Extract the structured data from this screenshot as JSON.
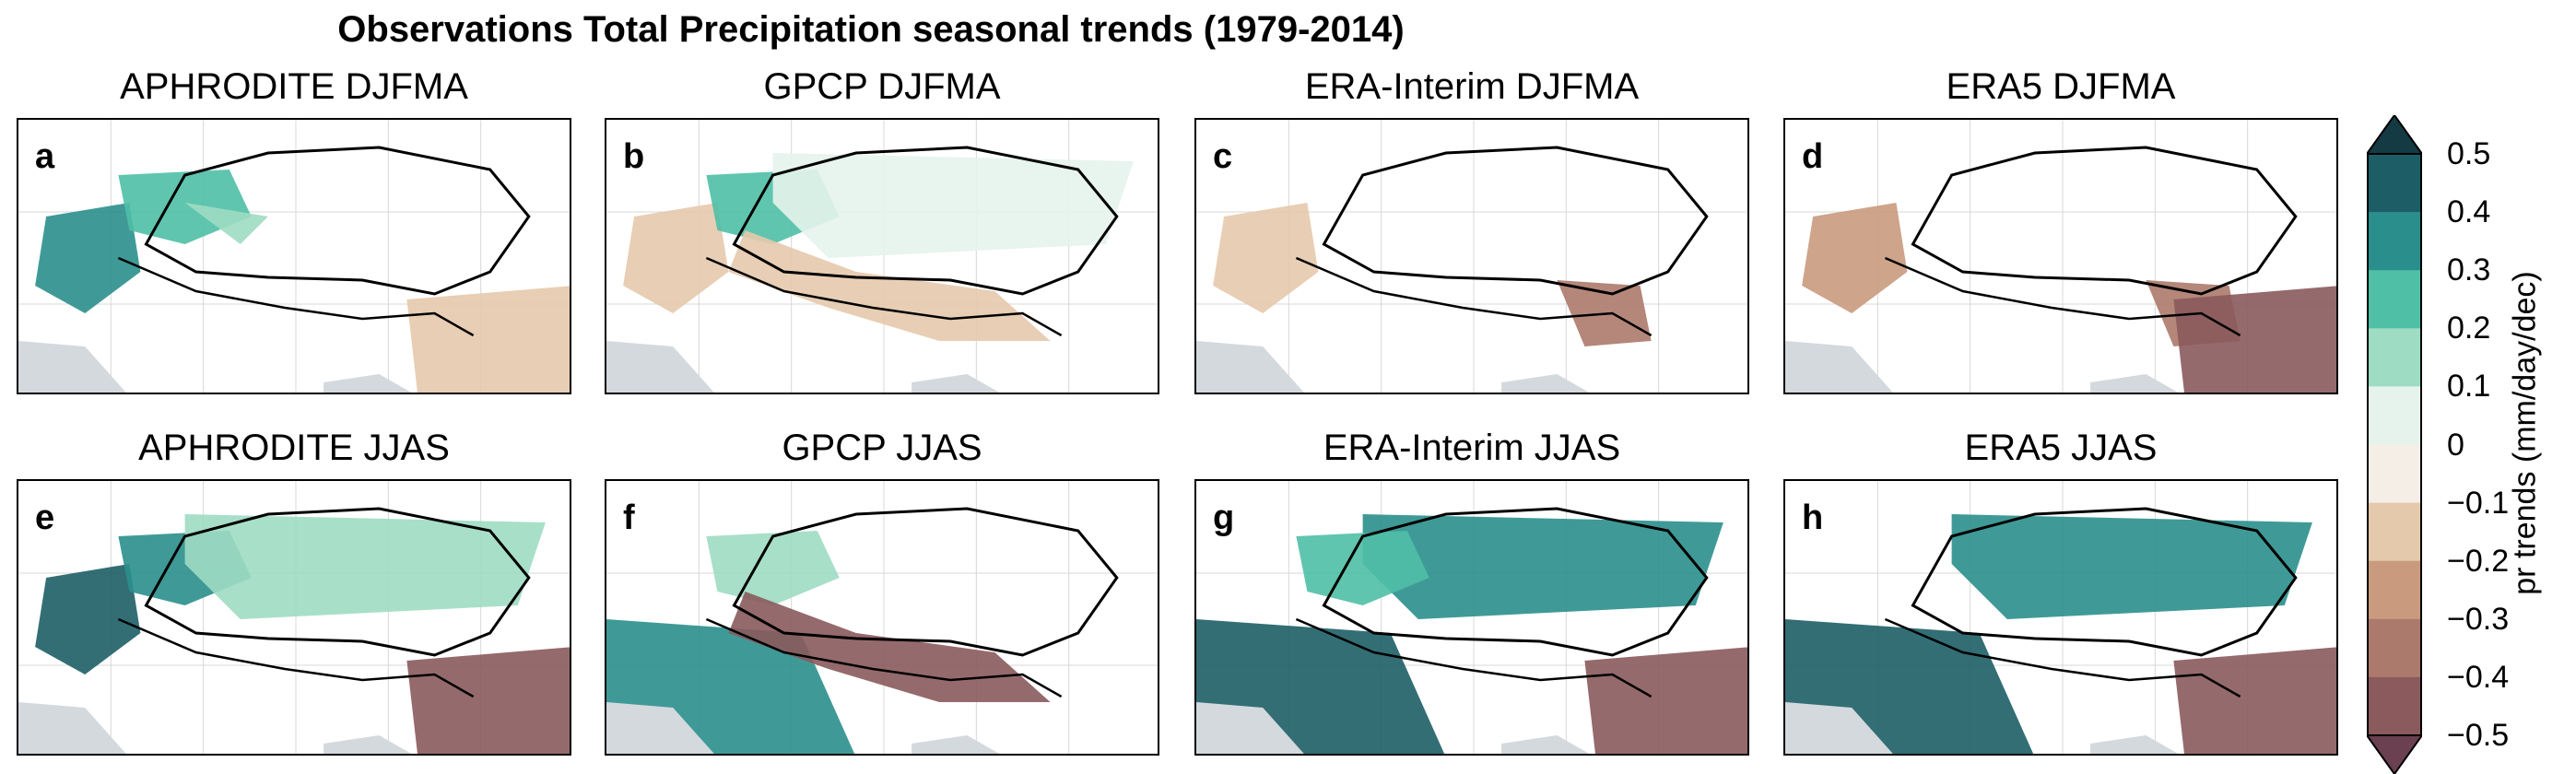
{
  "figure": {
    "title": "Observations Total Precipitation seasonal trends (1979-2014)"
  },
  "chart_data": {
    "type": "heatmap",
    "title": "Observations Total Precipitation seasonal trends (1979-2014)",
    "panels": [
      {
        "letter": "a",
        "title": "APHRODITE DJFMA",
        "features": [
          {
            "class": 0.35,
            "region": "northwest"
          },
          {
            "class": 0.25,
            "region": "upper-indus"
          },
          {
            "class": 0.15,
            "region": "north-central"
          },
          {
            "class": -0.15,
            "region": "southeast"
          }
        ]
      },
      {
        "letter": "b",
        "title": "GPCP DJFMA",
        "features": [
          {
            "class": -0.15,
            "region": "northwest"
          },
          {
            "class": 0.25,
            "region": "upper-indus"
          },
          {
            "class": 0.05,
            "region": "tibet-north"
          },
          {
            "class": -0.2,
            "region": "himalaya"
          }
        ]
      },
      {
        "letter": "c",
        "title": "ERA-Interim DJFMA",
        "features": [
          {
            "class": -0.15,
            "region": "northwest"
          },
          {
            "class": -0.35,
            "region": "eastern-himalaya"
          }
        ]
      },
      {
        "letter": "d",
        "title": "ERA5 DJFMA",
        "features": [
          {
            "class": -0.25,
            "region": "northwest"
          },
          {
            "class": -0.35,
            "region": "eastern-himalaya"
          },
          {
            "class": -0.45,
            "region": "southeast"
          }
        ]
      },
      {
        "letter": "e",
        "title": "APHRODITE JJAS",
        "features": [
          {
            "class": 0.45,
            "region": "northwest"
          },
          {
            "class": 0.35,
            "region": "upper-indus"
          },
          {
            "class": 0.15,
            "region": "tibet-north"
          },
          {
            "class": -0.45,
            "region": "southeast"
          }
        ]
      },
      {
        "letter": "f",
        "title": "GPCP JJAS",
        "features": [
          {
            "class": 0.35,
            "region": "southwest"
          },
          {
            "class": 0.15,
            "region": "upper-indus"
          },
          {
            "class": -0.45,
            "region": "himalaya"
          }
        ]
      },
      {
        "letter": "g",
        "title": "ERA-Interim JJAS",
        "features": [
          {
            "class": 0.45,
            "region": "southwest"
          },
          {
            "class": 0.35,
            "region": "tibet-north"
          },
          {
            "class": 0.25,
            "region": "upper-indus"
          },
          {
            "class": -0.45,
            "region": "southeast"
          }
        ]
      },
      {
        "letter": "h",
        "title": "ERA5 JJAS",
        "features": [
          {
            "class": 0.45,
            "region": "southwest"
          },
          {
            "class": 0.3,
            "region": "tibet-north"
          },
          {
            "class": -0.45,
            "region": "southeast"
          }
        ]
      }
    ],
    "colorbar": {
      "label": "pr trends (mm/day/dec)",
      "ticks": [
        "0.5",
        "0.4",
        "0.3",
        "0.2",
        "0.1",
        "0",
        "−0.1",
        "−0.2",
        "−0.3",
        "−0.4",
        "−0.5"
      ],
      "levels": [
        -0.5,
        -0.4,
        -0.3,
        -0.2,
        -0.1,
        0,
        0.1,
        0.2,
        0.3,
        0.4,
        0.5
      ],
      "colors": [
        "#6b4050",
        "#8a5a5c",
        "#ac7a6c",
        "#c99a7e",
        "#e5c9ac",
        "#f4eee7",
        "#e6f3ec",
        "#9edcc3",
        "#4fbfa6",
        "#2a8f8c",
        "#1d5e66",
        "#143a44"
      ],
      "extend": "both"
    },
    "land_color": "#d4d9de",
    "boundary_color": "#000000"
  }
}
